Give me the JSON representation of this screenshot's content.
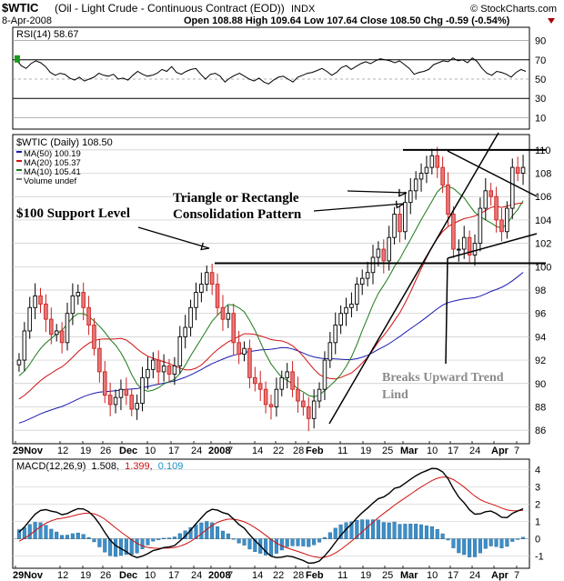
{
  "header": {
    "symbol": "$WTIC",
    "name": "(Oil - Light Crude - Continuous Contract (EOD))",
    "exchange": "INDX",
    "brand": "© StockCharts.com",
    "date": "8-Apr-2008",
    "ohlc": "Open 108.88  High 109.64  Low 107.64  Close 108.50  Chg -0.59 (-0.54%)"
  },
  "rsi": {
    "label": "RSI(14) 58.67",
    "ticks": [
      10,
      30,
      50,
      70,
      90
    ],
    "ylim": [
      0,
      100
    ],
    "values": [
      70,
      64,
      61,
      66,
      69,
      67,
      63,
      57,
      54,
      56,
      55,
      51,
      49,
      52,
      48,
      50,
      52,
      56,
      54,
      53,
      55,
      50,
      51,
      49,
      54,
      58,
      55,
      53,
      54,
      56,
      60,
      58,
      63,
      57,
      55,
      58,
      60,
      61,
      55,
      50,
      55,
      56,
      53,
      47,
      51,
      54,
      56,
      53,
      50,
      48,
      51,
      47,
      45,
      49,
      52,
      53,
      50,
      47,
      52,
      54,
      56,
      57,
      59,
      61,
      58,
      54,
      57,
      62,
      64,
      60,
      63,
      66,
      68,
      66,
      69,
      71,
      70,
      69,
      67,
      69,
      65,
      61,
      55,
      57,
      58,
      60,
      65,
      67,
      69,
      68,
      72,
      69,
      70,
      67,
      72,
      68,
      61,
      56,
      54,
      58,
      57,
      55,
      52,
      57,
      60,
      58
    ]
  },
  "price": {
    "title": "$WTIC (Daily) 108.50",
    "legend": [
      {
        "label": "MA(50) 100.19",
        "color": "#1a1ab0"
      },
      {
        "label": "MA(20) 105.37",
        "color": "#d01010"
      },
      {
        "label": "MA(10) 105.41",
        "color": "#1a7a1a"
      },
      {
        "label": "Volume undef",
        "color": "#777777"
      }
    ],
    "ticks": [
      86,
      88,
      90,
      92,
      94,
      96,
      98,
      100,
      102,
      104,
      106,
      108,
      110
    ],
    "ylim": [
      85,
      111
    ],
    "hlines": [
      {
        "y": 100.3,
        "label": "support"
      },
      {
        "y": 110.0,
        "label": "resistance"
      }
    ],
    "annotations": {
      "support": "$100 Support Level",
      "triangle_line1": "Triangle or Rectangle",
      "triangle_line2": "Consolidation Pattern",
      "breaks_line1": "Breaks Upward Trend",
      "breaks_line2": "Lind"
    }
  },
  "macd": {
    "label_prefix": "MACD(12,26,9)",
    "macd_value": "1.508",
    "signal_value": "1.399",
    "hist_value": "0.109",
    "ticks": [
      -1,
      0,
      1,
      2,
      3,
      4
    ],
    "ylim": [
      -1.6,
      4.4
    ]
  },
  "x_axis": {
    "labels": [
      "29Nov",
      "12",
      "19",
      "26",
      "Dec",
      "10",
      "17",
      "24",
      "2008",
      "7",
      "14",
      "22",
      "28",
      "Feb",
      "11",
      "19",
      "25",
      "Mar",
      "10",
      "17",
      "24",
      "Apr",
      "7"
    ]
  },
  "chart_data": {
    "type": "line",
    "title": "$WTIC (Daily) 108.50",
    "series": [
      {
        "name": "$WTIC (Daily)",
        "values": [
          92.0,
          94.5,
          96.5,
          97.5,
          96.8,
          95.5,
          94.2,
          94.5,
          93.5,
          96.0,
          97.5,
          97.8,
          96.5,
          95.0,
          93.0,
          91.0,
          89.0,
          88.2,
          88.8,
          89.5,
          89.0,
          87.8,
          88.3,
          90.5,
          91.2,
          92.0,
          91.0,
          91.5,
          90.8,
          91.5,
          94.0,
          94.8,
          96.5,
          97.8,
          98.5,
          99.5,
          98.5,
          96.5,
          95.5,
          96.0,
          93.5,
          92.5,
          93.0,
          90.5,
          90.0,
          89.5,
          88.2,
          88.0,
          89.5,
          90.5,
          91.0,
          89.5,
          88.5,
          88.0,
          87.0,
          88.5,
          89.5,
          92.0,
          93.5,
          95.0,
          96.0,
          96.5,
          96.8,
          98.5,
          99.0,
          99.5,
          100.8,
          101.5,
          100.5,
          102.5,
          104.5,
          103.0,
          105.5,
          106.5,
          107.5,
          108.0,
          108.5,
          109.5,
          108.5,
          107.0,
          104.5,
          101.5,
          101.5,
          102.5,
          101.0,
          102.0,
          105.0,
          106.5,
          106.0,
          104.0,
          103.0,
          105.0,
          108.5,
          108.0,
          108.5
        ]
      },
      {
        "name": "MA(50) 100.19",
        "values": []
      },
      {
        "name": "MA(20) 105.37",
        "values": []
      },
      {
        "name": "MA(10) 105.41",
        "values": []
      }
    ],
    "ylabel": "",
    "ylim": [
      85,
      111
    ]
  }
}
